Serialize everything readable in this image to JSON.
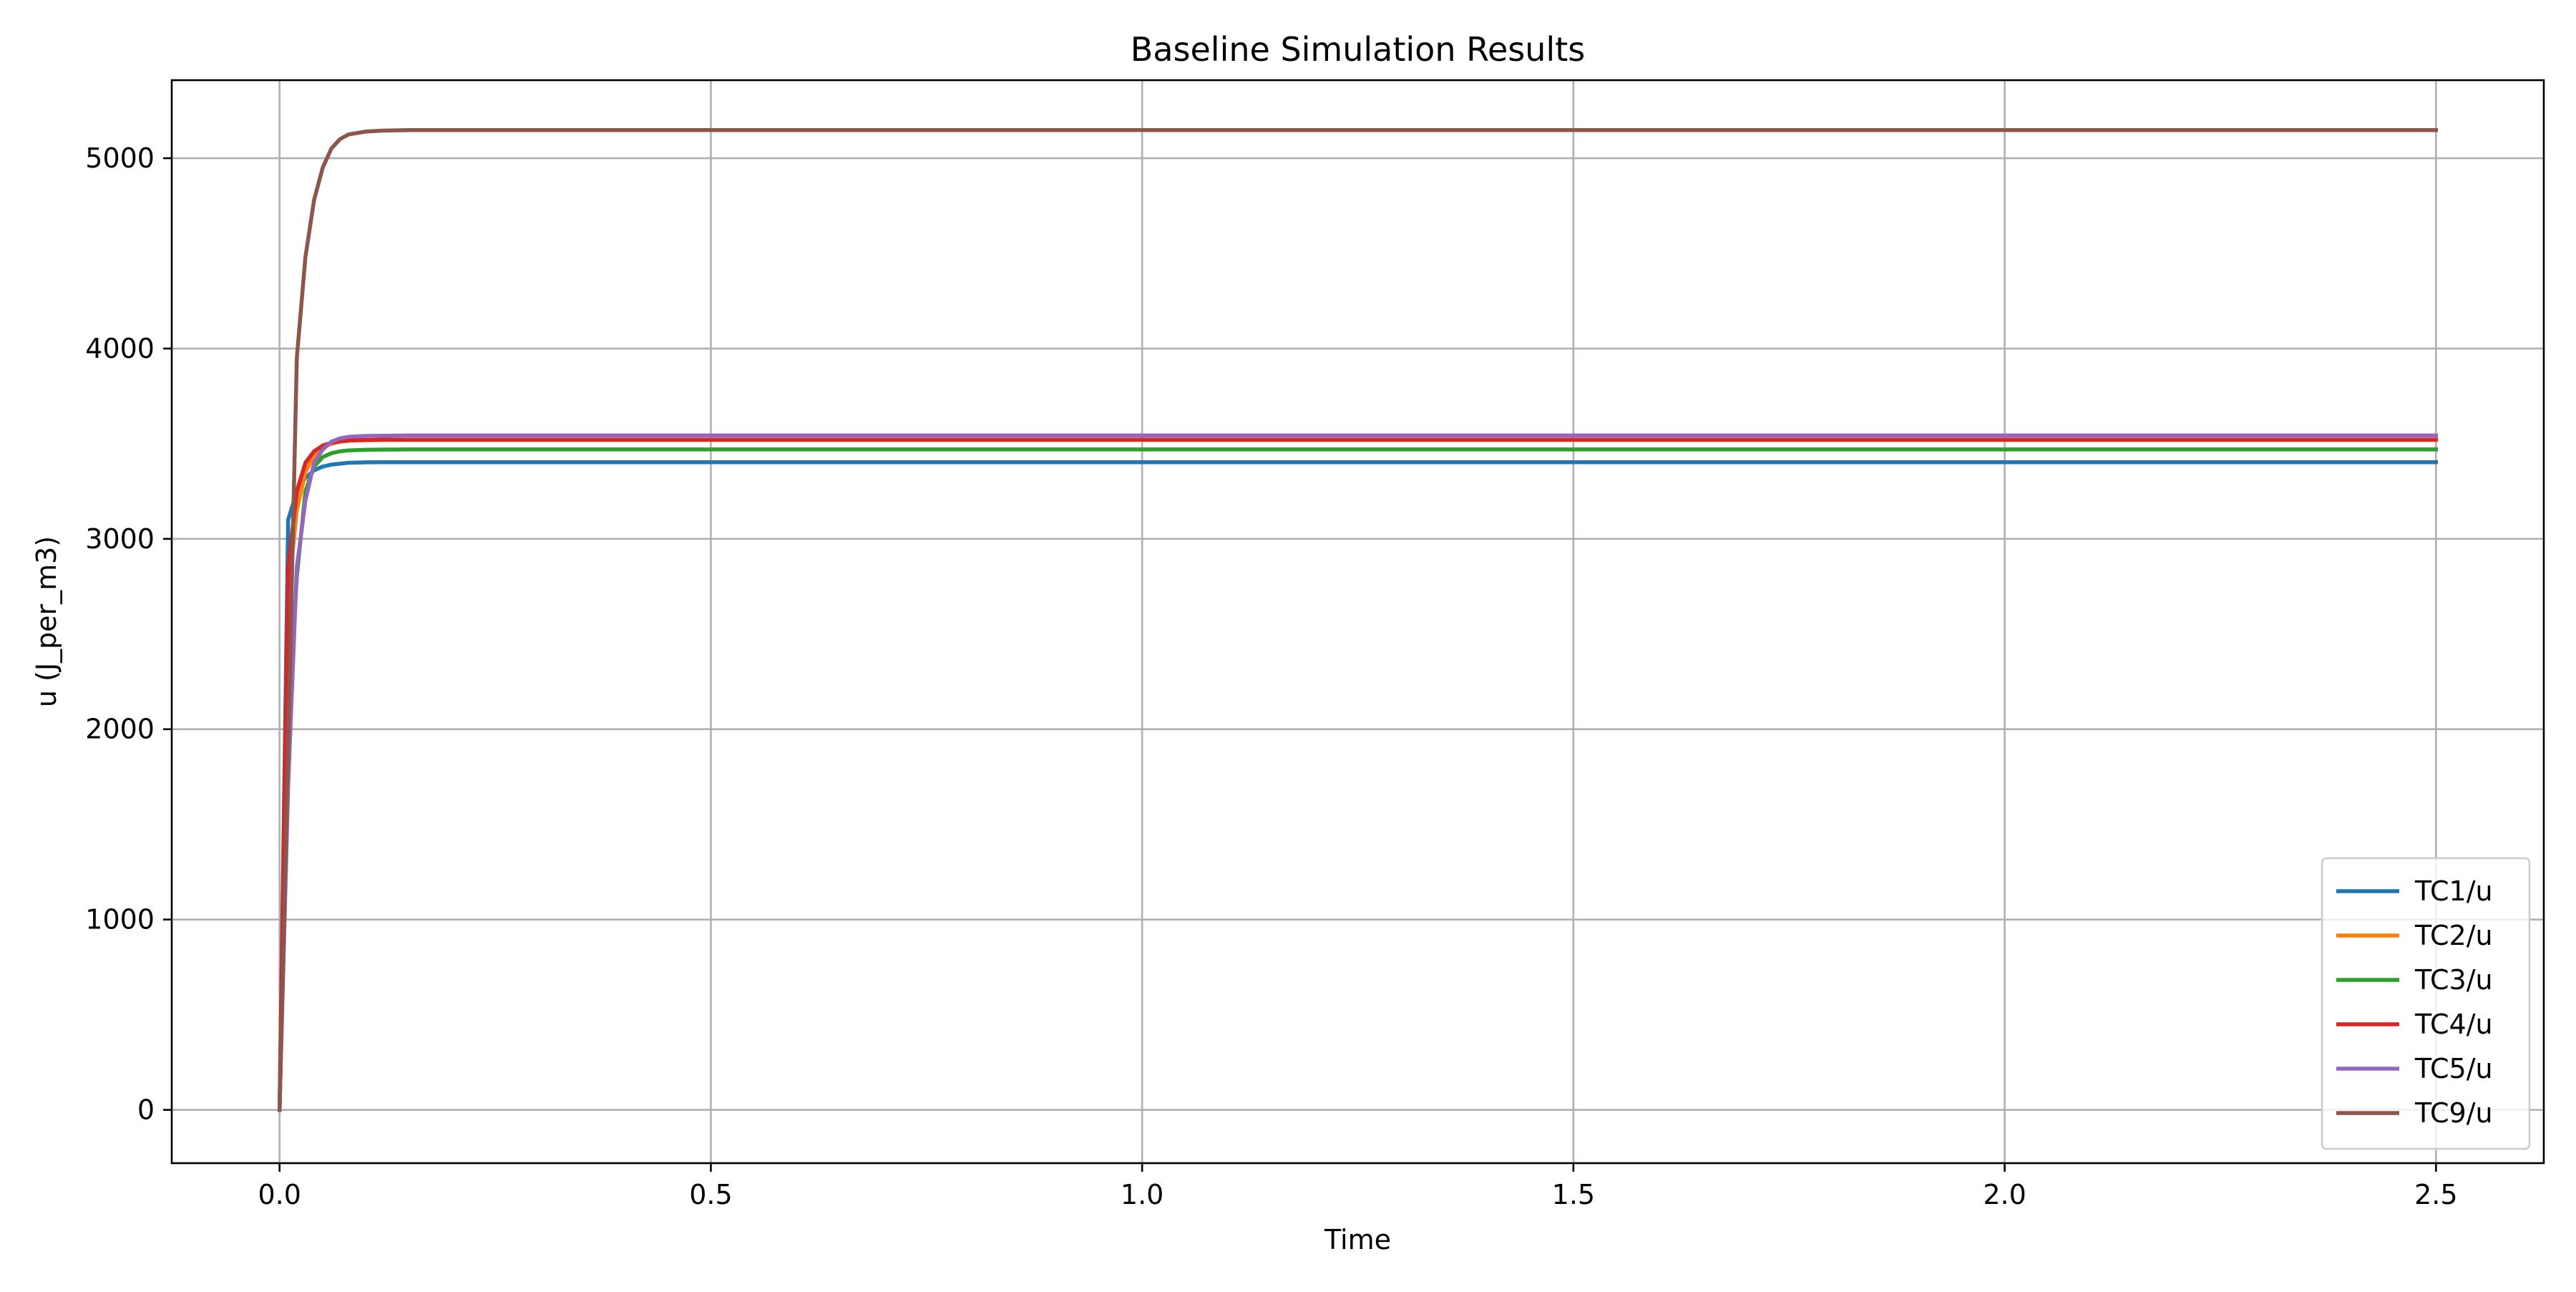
{
  "chart_data": {
    "type": "line",
    "title": "Baseline Simulation Results",
    "xlabel": "Time",
    "ylabel": "u (J_per_m3)",
    "xlim": [
      -0.125,
      2.625
    ],
    "ylim": [
      -280,
      5410
    ],
    "x_ticks": [
      0.0,
      0.5,
      1.0,
      1.5,
      2.0,
      2.5
    ],
    "x_tick_labels": [
      "0.0",
      "0.5",
      "1.0",
      "1.5",
      "2.0",
      "2.5"
    ],
    "y_ticks": [
      0,
      1000,
      2000,
      3000,
      4000,
      5000
    ],
    "y_tick_labels": [
      "0",
      "1000",
      "2000",
      "3000",
      "4000",
      "5000"
    ],
    "grid": true,
    "legend_position": "lower-right",
    "x": [
      0.0,
      0.01,
      0.02,
      0.03,
      0.04,
      0.05,
      0.06,
      0.07,
      0.08,
      0.1,
      0.12,
      0.15,
      0.2,
      0.5,
      1.0,
      1.5,
      2.0,
      2.5
    ],
    "series": [
      {
        "name": "TC1/u",
        "color": "#1f77b4",
        "values": [
          0,
          3100,
          3250,
          3320,
          3360,
          3380,
          3390,
          3395,
          3400,
          3402,
          3403,
          3403,
          3403,
          3403,
          3403,
          3403,
          3403,
          3403
        ]
      },
      {
        "name": "TC2/u",
        "color": "#ff7f0e",
        "values": [
          0,
          2700,
          3150,
          3350,
          3440,
          3480,
          3500,
          3510,
          3515,
          3518,
          3519,
          3520,
          3520,
          3520,
          3520,
          3520,
          3520,
          3520
        ]
      },
      {
        "name": "TC3/u",
        "color": "#2ca02c",
        "values": [
          0,
          2000,
          2800,
          3250,
          3380,
          3430,
          3450,
          3460,
          3465,
          3468,
          3469,
          3470,
          3470,
          3470,
          3470,
          3470,
          3470,
          3470
        ]
      },
      {
        "name": "TC4/u",
        "color": "#d62728",
        "values": [
          0,
          2850,
          3250,
          3400,
          3460,
          3490,
          3505,
          3513,
          3518,
          3520,
          3521,
          3521,
          3521,
          3521,
          3521,
          3521,
          3521,
          3521
        ]
      },
      {
        "name": "TC5/u",
        "color": "#9467bd",
        "values": [
          0,
          1700,
          2850,
          3200,
          3400,
          3470,
          3510,
          3528,
          3536,
          3541,
          3542,
          3543,
          3543,
          3543,
          3543,
          3543,
          3543,
          3543
        ]
      },
      {
        "name": "TC9/u",
        "color": "#8c564b",
        "values": [
          0,
          1900,
          3950,
          4480,
          4780,
          4950,
          5050,
          5100,
          5125,
          5140,
          5145,
          5148,
          5148,
          5148,
          5148,
          5148,
          5148,
          5148
        ]
      }
    ]
  }
}
